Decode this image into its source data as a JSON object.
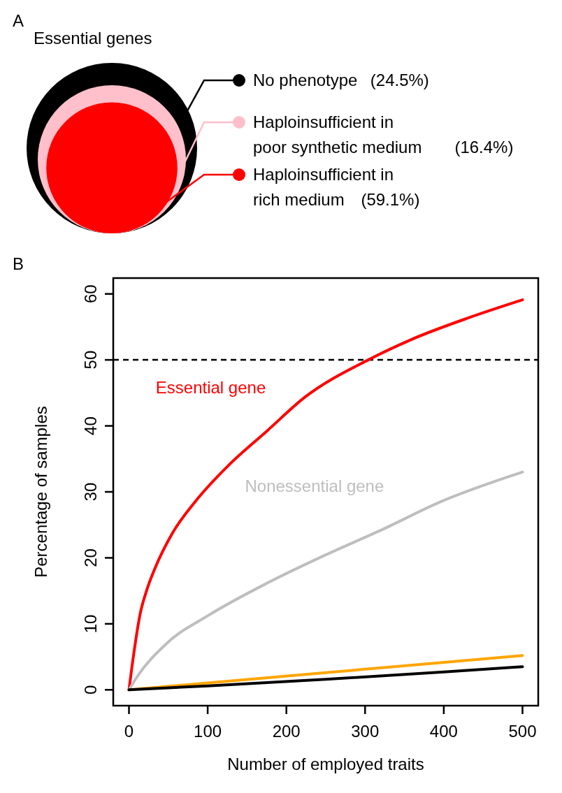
{
  "chart_data": [
    {
      "type": "other",
      "title": "Essential genes",
      "annotations": [
        "A"
      ],
      "categories": [
        "No phenotype",
        "Haploinsufficient in poor synthetic medium",
        "Haploinsufficient in rich medium"
      ],
      "values": [
        24.5,
        16.4,
        59.1
      ],
      "value_labels": [
        "(24.5%)",
        "(16.4%)",
        "(59.1%)"
      ],
      "colors": [
        "#000000",
        "#ffc0cb",
        "#ff0000"
      ]
    },
    {
      "type": "line",
      "annotations": [
        "B"
      ],
      "xlabel": "Number of employed traits",
      "ylabel": "Percentage of samples",
      "xlim": [
        -20,
        520
      ],
      "ylim": [
        -2.4,
        62.4
      ],
      "xticks": [
        0,
        100,
        200,
        300,
        400,
        500
      ],
      "yticks": [
        0,
        10,
        20,
        30,
        40,
        50,
        60
      ],
      "grid": false,
      "legend": false,
      "marker": "none",
      "line_style": "solid",
      "ref_lines": [
        {
          "axis": "y",
          "value": 50,
          "color": "#000000",
          "line_style": "dashed"
        }
      ],
      "series": [
        {
          "name": "Essential gene",
          "color": "#ff0000",
          "x": [
            0,
            3.7,
            14.7,
            22,
            33,
            55,
            84,
            128,
            176,
            223,
            304,
            359,
            432,
            500
          ],
          "values": [
            0,
            3.4,
            11.8,
            14.9,
            18.4,
            23.7,
            28.5,
            34.2,
            39.3,
            44.3,
            50,
            53.1,
            56.4,
            59.1
          ]
        },
        {
          "name": "Nonessential gene",
          "color": "#bebebe",
          "x": [
            0,
            11,
            47.6,
            102.6,
            176,
            249,
            322,
            396,
            500
          ],
          "values": [
            0,
            2.1,
            7.0,
            11.4,
            16.2,
            20.4,
            24.3,
            28.5,
            33.0
          ]
        },
        {
          "color": "#ffa500",
          "x": [
            0,
            250,
            500
          ],
          "values": [
            0,
            2.6,
            5.2
          ]
        },
        {
          "color": "#000000",
          "x": [
            0,
            100,
            250,
            400,
            500
          ],
          "values": [
            0,
            0.6,
            1.6,
            2.7,
            3.5
          ]
        }
      ]
    }
  ]
}
